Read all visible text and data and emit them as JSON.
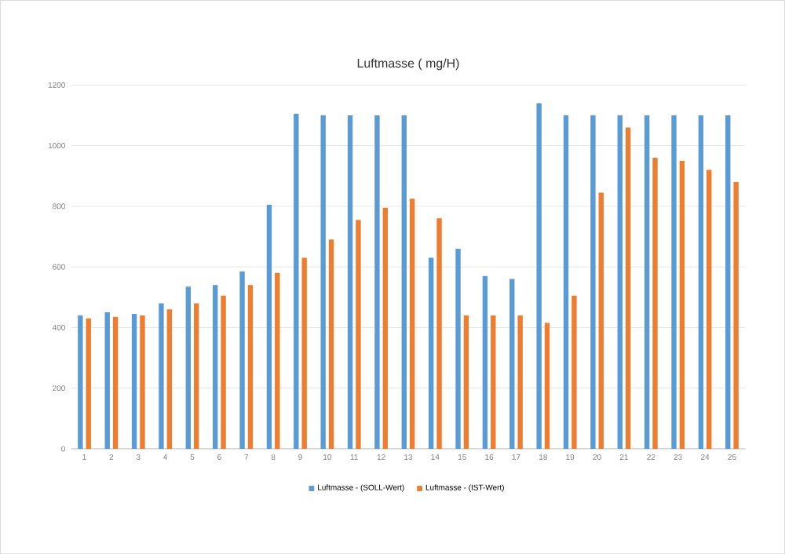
{
  "chart_data": {
    "type": "bar",
    "title": "Luftmasse ( mg/H)",
    "categories": [
      "1",
      "2",
      "3",
      "4",
      "5",
      "6",
      "7",
      "8",
      "9",
      "10",
      "11",
      "12",
      "13",
      "14",
      "15",
      "16",
      "17",
      "18",
      "19",
      "20",
      "21",
      "22",
      "23",
      "24",
      "25"
    ],
    "series": [
      {
        "name": "Luftmasse - (SOLL-Wert)",
        "color": "#5b9bd5",
        "values": [
          440,
          450,
          445,
          480,
          535,
          540,
          585,
          805,
          1105,
          1100,
          1100,
          1100,
          1100,
          630,
          660,
          570,
          560,
          1140,
          1100,
          1100,
          1100,
          1100,
          1100,
          1100,
          1100
        ]
      },
      {
        "name": "Luftmasse - (IST-Wert)",
        "color": "#ed7d31",
        "values": [
          430,
          435,
          440,
          460,
          480,
          505,
          540,
          580,
          630,
          690,
          755,
          795,
          825,
          760,
          440,
          440,
          440,
          415,
          505,
          845,
          1060,
          960,
          950,
          920,
          880
        ]
      }
    ],
    "ylim": [
      0,
      1200
    ],
    "yticks": [
      0,
      200,
      400,
      600,
      800,
      1000,
      1200
    ],
    "grid": "y",
    "legend": "bottom"
  }
}
